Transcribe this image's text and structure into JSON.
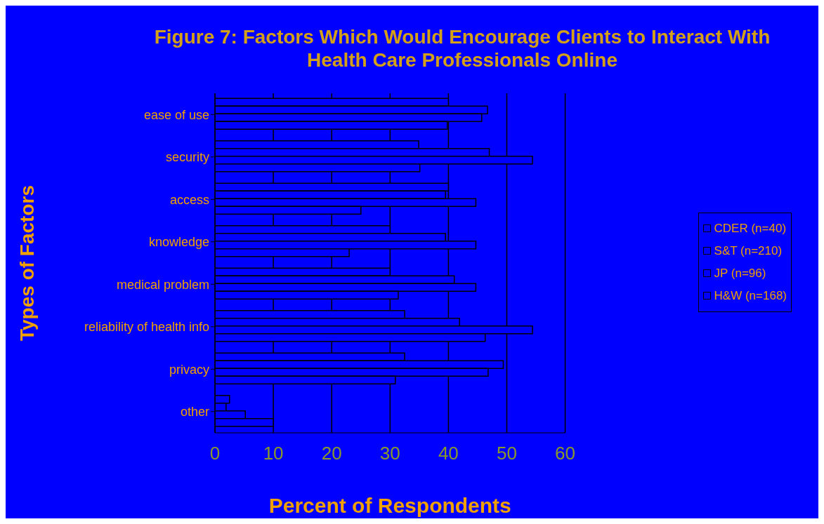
{
  "chart_data": {
    "type": "bar",
    "orientation": "horizontal",
    "title": "Figure 7: Factors Which Would Encourage Clients to Interact With\nHealth Care Professionals Online",
    "xlabel": "Percent of Respondents",
    "ylabel": "Types of Factors",
    "categories": [
      "ease of use",
      "security",
      "access",
      "knowledge",
      "medical problem",
      "reliability of health info",
      "privacy",
      "other"
    ],
    "series": [
      {
        "name": "CDER (n=40)",
        "color": "#0000ff",
        "values": [
          40,
          34.9,
          40,
          30,
          30,
          32.5,
          32.5,
          2.5
        ]
      },
      {
        "name": "S&T (n=210)",
        "color": "#0000ff",
        "values": [
          46.7,
          47,
          39.5,
          39.5,
          41,
          41.9,
          49.4,
          1.9
        ]
      },
      {
        "name": "JP (n=96)",
        "color": "#0000ff",
        "values": [
          45.7,
          54.4,
          44.7,
          44.7,
          44.7,
          54.4,
          46.8,
          5.2
        ]
      },
      {
        "name": "H&W (n=168)",
        "color": "#0000ff",
        "values": [
          39.8,
          35.1,
          25,
          23,
          31.4,
          46.3,
          30.9,
          10
        ]
      }
    ],
    "xlim": [
      0,
      60
    ],
    "xticks": [
      0,
      10,
      20,
      30,
      40,
      50,
      60
    ],
    "grid": "x",
    "legend": "right"
  }
}
